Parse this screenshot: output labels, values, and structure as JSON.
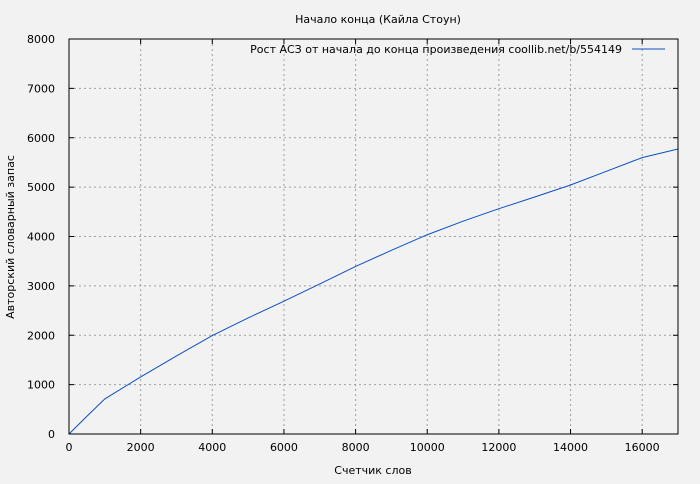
{
  "chart_data": {
    "type": "line",
    "title": "Начало конца (Кайла Стоун)",
    "xlabel": "Счетчик слов",
    "ylabel": "Авторский словарный запас",
    "xlim": [
      0,
      17000
    ],
    "ylim": [
      0,
      8000
    ],
    "xticks": [
      0,
      2000,
      4000,
      6000,
      8000,
      10000,
      12000,
      14000,
      16000
    ],
    "yticks": [
      0,
      1000,
      2000,
      3000,
      4000,
      5000,
      6000,
      7000,
      8000
    ],
    "grid": true,
    "legend_position": "top-right",
    "series": [
      {
        "name": "Рост АСЗ от начала до конца произведения coollib.net/b/554149",
        "color": "#0b4fc4",
        "x": [
          0,
          500,
          1000,
          2000,
          3000,
          4000,
          5000,
          6000,
          7000,
          8000,
          9000,
          10000,
          11000,
          12000,
          13000,
          14000,
          15000,
          16000,
          17000
        ],
        "y": [
          0,
          360,
          710,
          1156,
          1580,
          1994,
          2350,
          2690,
          3040,
          3393,
          3720,
          4036,
          4310,
          4563,
          4800,
          5043,
          5320,
          5598,
          5773
        ]
      }
    ]
  }
}
